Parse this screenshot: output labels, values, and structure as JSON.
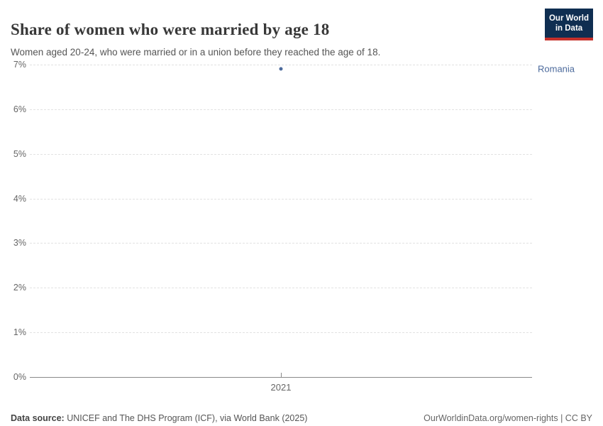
{
  "header": {
    "title": "Share of women who were married by age 18",
    "subtitle": "Women aged 20-24, who were married or in a union before they reached the age of 18.",
    "logo": {
      "line1": "Our World",
      "line2": "in Data",
      "bg_color": "#0F2E51",
      "accent_color": "#C5302B"
    }
  },
  "chart_data": {
    "type": "scatter",
    "title": "Share of women who were married by age 18",
    "subtitle": "Women aged 20-24, who were married or in a union before they reached the age of 18.",
    "series": [
      {
        "name": "Romania",
        "color": "#4C6A9C",
        "points": [
          {
            "x": 2021,
            "y": 6.9
          }
        ]
      }
    ],
    "x_tick_labels": [
      "2021"
    ],
    "y_ticks": [
      0,
      1,
      2,
      3,
      4,
      5,
      6,
      7
    ],
    "y_tick_suffix": "%",
    "ylim": [
      0,
      7
    ],
    "grid": "horizontal-dashed",
    "legend_position": "entity label right of plot",
    "colors": {
      "gridline": "#e2e2e2",
      "axis_line": "#8a8a8a",
      "tick_text": "#666666"
    }
  },
  "footer": {
    "source_label": "Data source:",
    "source_text": "UNICEF and The DHS Program (ICF), via World Bank (2025)",
    "rights_text": "OurWorldinData.org/women-rights | CC BY"
  }
}
